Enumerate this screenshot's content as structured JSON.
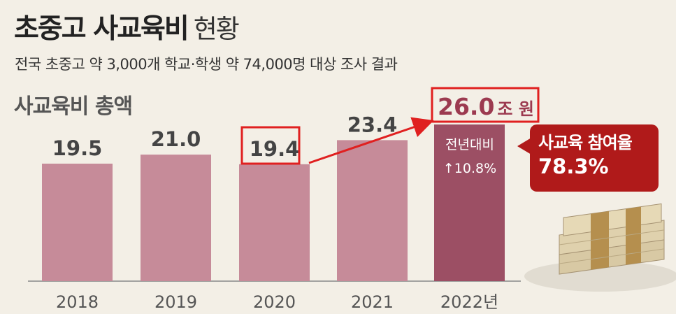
{
  "header": {
    "title_bold": "초중고 사교육비",
    "title_light": "현황",
    "subtitle": "전국 초중고 약 3,000개 학교·학생 약 74,000명 대상 조사 결과"
  },
  "section_label": "사교육비 총액",
  "callout": {
    "line1": "사교육 참여율",
    "line2": "78.3%"
  },
  "highlight": {
    "value_text": "26.0",
    "unit_text": "조 원",
    "inner_line1": "전년대비",
    "inner_line2": "↑10.8%"
  },
  "colors": {
    "bar": "#c68b99",
    "bar_highlight": "#9c4f64",
    "accent_red": "#e02020",
    "background": "#f3efe6"
  },
  "chart_data": {
    "type": "bar",
    "categories": [
      "2018",
      "2019",
      "2020",
      "2021",
      "2022년"
    ],
    "values": [
      19.5,
      21.0,
      19.4,
      23.4,
      26.0
    ],
    "value_labels": [
      "19.5",
      "21.0",
      "19.4",
      "23.4",
      ""
    ],
    "highlight_index": 4,
    "boxed_labels": [
      2,
      4
    ],
    "arrow": {
      "from": "2020",
      "to": "2022년"
    },
    "ylim": [
      0,
      26.0
    ],
    "grid": false
  }
}
